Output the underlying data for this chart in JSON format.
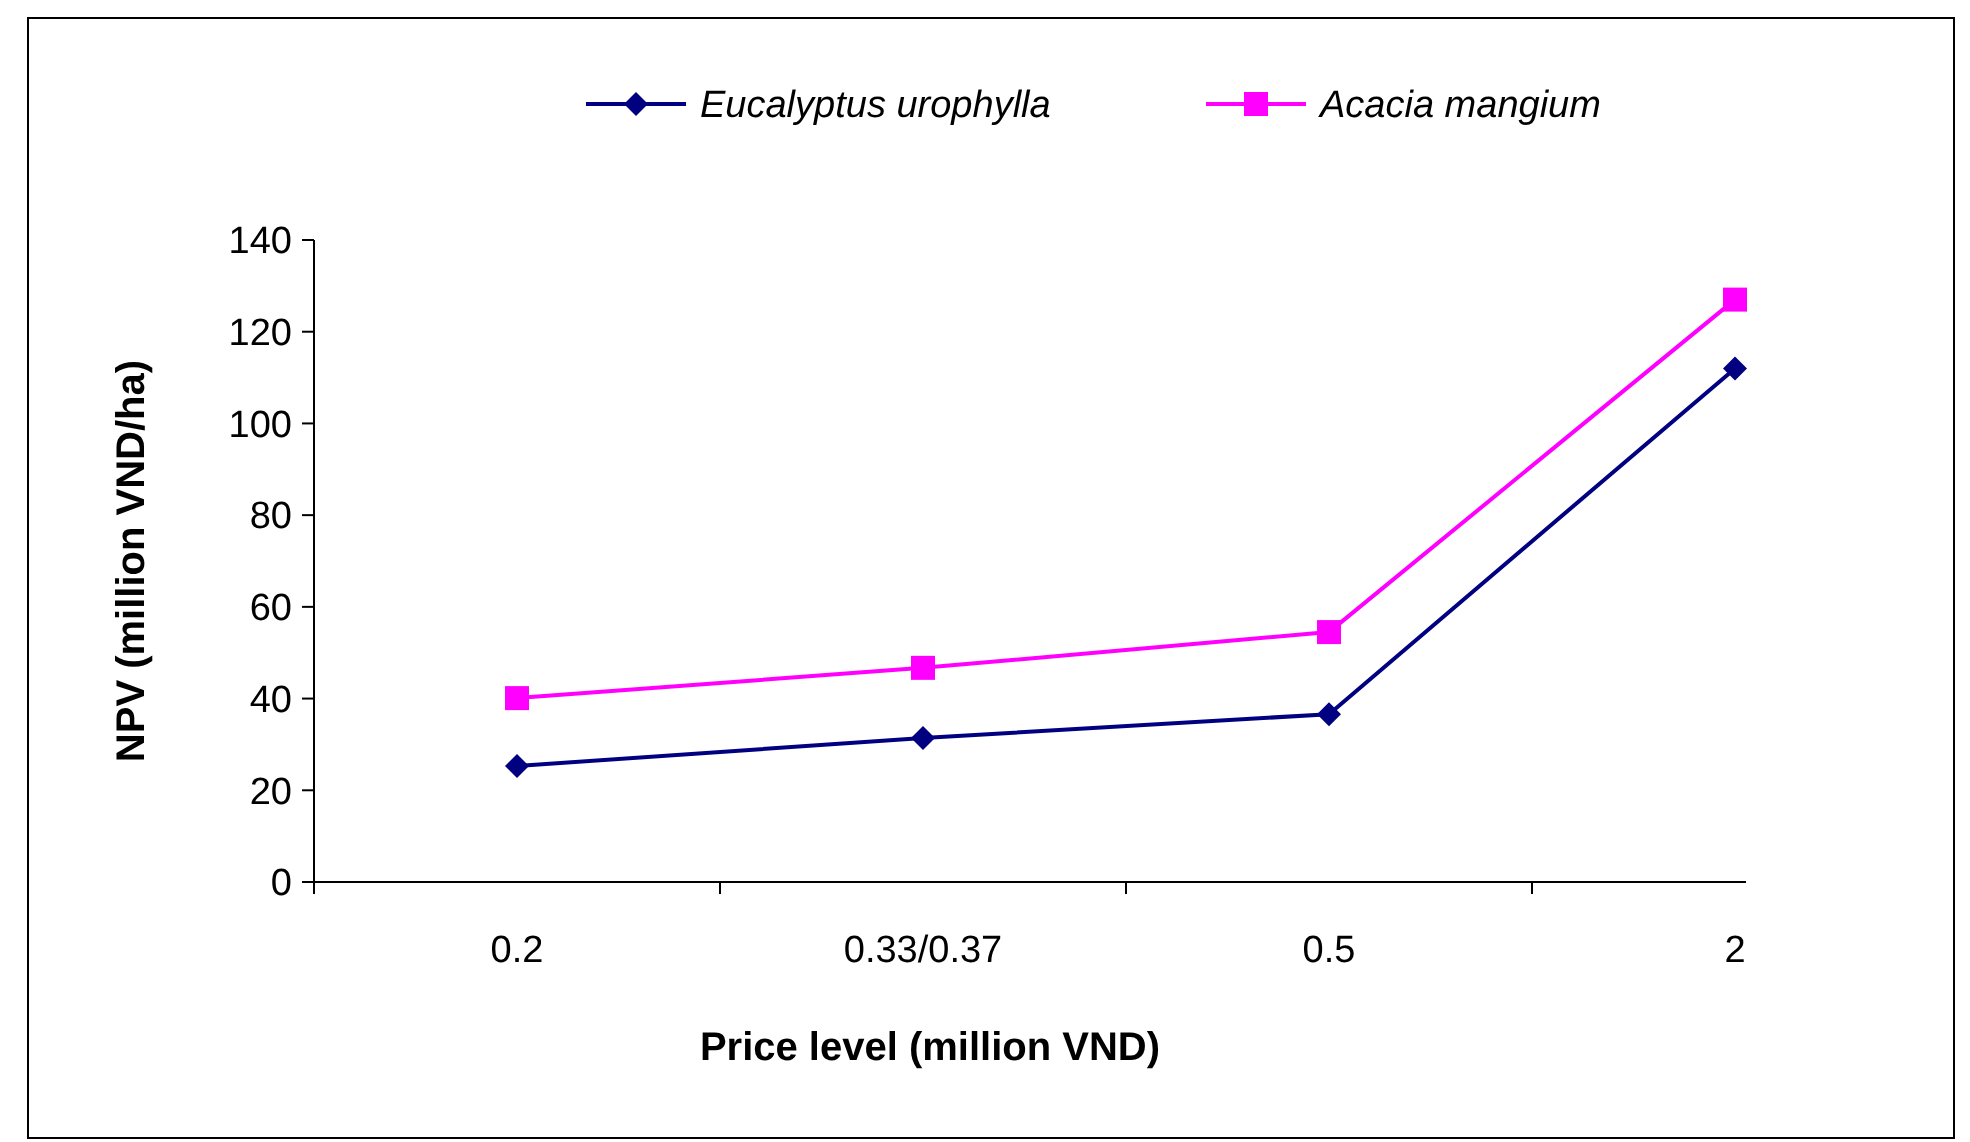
{
  "chart_data": {
    "type": "line",
    "xlabel": "Price level (million VND)",
    "ylabel": "NPV (million VND/ha)",
    "categories": [
      "0.2",
      "0.33/0.37",
      "0.5",
      "2"
    ],
    "series": [
      {
        "name": "Eucalyptus urophylla",
        "color": "#000080",
        "marker": "diamond",
        "values": [
          25.3,
          31.4,
          36.6,
          112
        ]
      },
      {
        "name": "Acacia mangium",
        "color": "#ff00ff",
        "marker": "square",
        "values": [
          40.1,
          46.7,
          54.5,
          127
        ]
      }
    ],
    "ylim": [
      0,
      140
    ],
    "yticks": [
      0,
      20,
      40,
      60,
      80,
      100,
      120,
      140
    ],
    "grid": false,
    "legend": "top right"
  }
}
